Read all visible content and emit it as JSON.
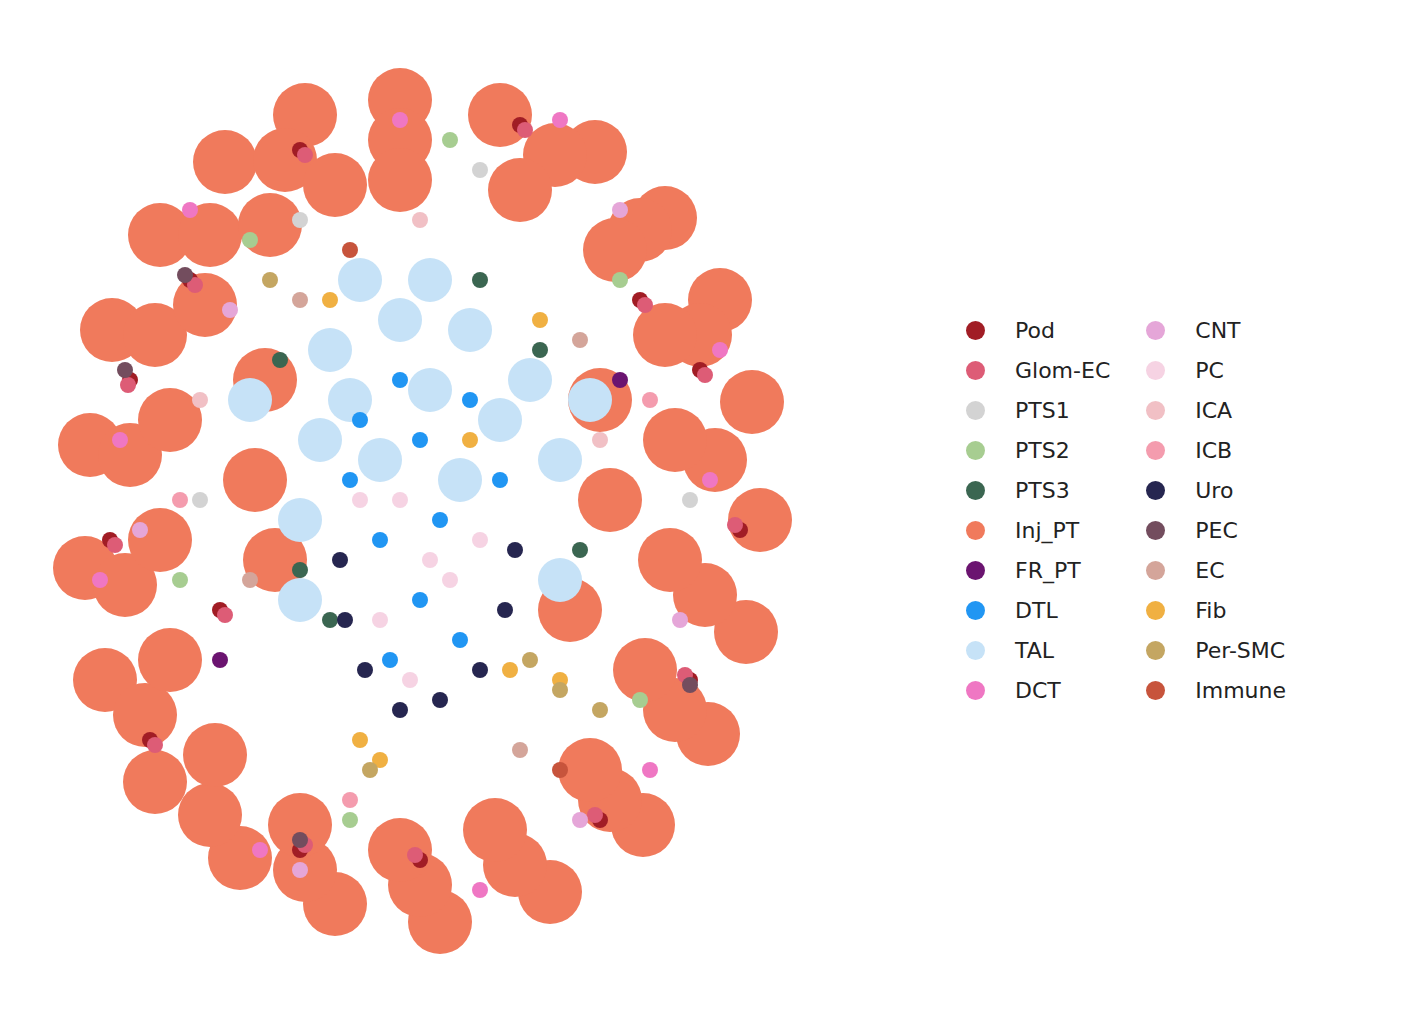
{
  "chart_data": {
    "type": "scatter",
    "marker": "circle",
    "grid": false,
    "tick_labels": false,
    "legend": "right",
    "xlim": [
      40,
      810
    ],
    "ylim": [
      30,
      950
    ],
    "series": [
      {
        "name": "Pod",
        "color": "#a11d25",
        "values": [
          [
            130,
            620
          ],
          [
            190,
            720
          ],
          [
            300,
            850
          ],
          [
            520,
            875
          ],
          [
            700,
            630
          ],
          [
            740,
            470
          ],
          [
            690,
            320
          ],
          [
            600,
            180
          ],
          [
            300,
            150
          ],
          [
            150,
            260
          ],
          [
            110,
            460
          ],
          [
            640,
            700
          ],
          [
            220,
            390
          ],
          [
            420,
            140
          ]
        ]
      },
      {
        "name": "Glom-EC",
        "color": "#dd5c76",
        "values": [
          [
            128,
            615
          ],
          [
            195,
            715
          ],
          [
            305,
            845
          ],
          [
            525,
            870
          ],
          [
            705,
            625
          ],
          [
            735,
            475
          ],
          [
            685,
            325
          ],
          [
            595,
            185
          ],
          [
            305,
            155
          ],
          [
            155,
            255
          ],
          [
            115,
            455
          ],
          [
            645,
            695
          ],
          [
            225,
            385
          ],
          [
            415,
            145
          ]
        ]
      },
      {
        "name": "PTS1",
        "color": "#d3d3d3",
        "values": [
          [
            480,
            830
          ],
          [
            300,
            780
          ],
          [
            200,
            500
          ],
          [
            690,
            500
          ]
        ]
      },
      {
        "name": "PTS2",
        "color": "#a7cd91",
        "values": [
          [
            250,
            760
          ],
          [
            620,
            720
          ],
          [
            180,
            420
          ],
          [
            640,
            300
          ],
          [
            450,
            860
          ],
          [
            350,
            180
          ]
        ]
      },
      {
        "name": "PTS3",
        "color": "#3b6651",
        "values": [
          [
            280,
            640
          ],
          [
            540,
            650
          ],
          [
            300,
            430
          ],
          [
            580,
            450
          ],
          [
            480,
            720
          ],
          [
            330,
            380
          ]
        ]
      },
      {
        "name": "Inj_PT",
        "color": "#f07a5c",
        "values": [
          [
            400,
            900
          ],
          [
            500,
            885
          ],
          [
            595,
            848
          ],
          [
            665,
            782
          ],
          [
            720,
            700
          ],
          [
            752,
            598
          ],
          [
            760,
            480
          ],
          [
            746,
            368
          ],
          [
            708,
            266
          ],
          [
            643,
            175
          ],
          [
            550,
            108
          ],
          [
            440,
            78
          ],
          [
            335,
            96
          ],
          [
            240,
            142
          ],
          [
            155,
            218
          ],
          [
            105,
            320
          ],
          [
            85,
            432
          ],
          [
            90,
            555
          ],
          [
            112,
            670
          ],
          [
            160,
            765
          ],
          [
            225,
            838
          ],
          [
            305,
            885
          ],
          [
            400,
            860
          ],
          [
            555,
            845
          ],
          [
            640,
            770
          ],
          [
            700,
            665
          ],
          [
            715,
            540
          ],
          [
            705,
            405
          ],
          [
            675,
            290
          ],
          [
            610,
            200
          ],
          [
            515,
            135
          ],
          [
            420,
            115
          ],
          [
            305,
            130
          ],
          [
            210,
            185
          ],
          [
            145,
            285
          ],
          [
            125,
            415
          ],
          [
            130,
            545
          ],
          [
            155,
            665
          ],
          [
            210,
            765
          ],
          [
            285,
            840
          ],
          [
            400,
            820
          ],
          [
            520,
            810
          ],
          [
            615,
            750
          ],
          [
            665,
            665
          ],
          [
            675,
            560
          ],
          [
            670,
            440
          ],
          [
            645,
            330
          ],
          [
            590,
            230
          ],
          [
            495,
            170
          ],
          [
            400,
            150
          ],
          [
            300,
            175
          ],
          [
            215,
            245
          ],
          [
            170,
            340
          ],
          [
            160,
            460
          ],
          [
            170,
            580
          ],
          [
            205,
            695
          ],
          [
            270,
            775
          ],
          [
            335,
            815
          ],
          [
            265,
            620
          ],
          [
            255,
            520
          ],
          [
            275,
            440
          ],
          [
            600,
            600
          ],
          [
            610,
            500
          ],
          [
            570,
            390
          ]
        ]
      },
      {
        "name": "FR_PT",
        "color": "#6b1470",
        "values": [
          [
            620,
            620
          ],
          [
            220,
            340
          ]
        ]
      },
      {
        "name": "DTL",
        "color": "#2196f3",
        "values": [
          [
            360,
            580
          ],
          [
            420,
            560
          ],
          [
            470,
            600
          ],
          [
            400,
            620
          ],
          [
            440,
            480
          ],
          [
            380,
            460
          ],
          [
            420,
            400
          ],
          [
            460,
            360
          ],
          [
            390,
            340
          ],
          [
            350,
            520
          ],
          [
            500,
            520
          ]
        ]
      },
      {
        "name": "TAL",
        "color": "#c6e2f7",
        "values": [
          [
            330,
            650
          ],
          [
            400,
            680
          ],
          [
            470,
            670
          ],
          [
            530,
            620
          ],
          [
            560,
            540
          ],
          [
            320,
            560
          ],
          [
            300,
            480
          ],
          [
            350,
            600
          ],
          [
            430,
            610
          ],
          [
            500,
            580
          ],
          [
            380,
            540
          ],
          [
            460,
            520
          ],
          [
            300,
            400
          ],
          [
            560,
            420
          ],
          [
            250,
            600
          ],
          [
            590,
            600
          ],
          [
            430,
            720
          ],
          [
            360,
            720
          ]
        ]
      },
      {
        "name": "DCT",
        "color": "#ef77c3",
        "values": [
          [
            120,
            560
          ],
          [
            190,
            790
          ],
          [
            560,
            880
          ],
          [
            710,
            520
          ],
          [
            650,
            230
          ],
          [
            260,
            150
          ],
          [
            480,
            110
          ],
          [
            100,
            420
          ],
          [
            720,
            650
          ],
          [
            400,
            880
          ]
        ]
      },
      {
        "name": "CNT",
        "color": "#e5a6d8",
        "values": [
          [
            140,
            470
          ],
          [
            680,
            380
          ],
          [
            580,
            180
          ],
          [
            300,
            130
          ],
          [
            230,
            690
          ],
          [
            620,
            790
          ]
        ]
      },
      {
        "name": "PC",
        "color": "#f6d3e3",
        "values": [
          [
            400,
            500
          ],
          [
            430,
            440
          ],
          [
            380,
            380
          ],
          [
            450,
            420
          ],
          [
            410,
            320
          ],
          [
            360,
            500
          ],
          [
            480,
            460
          ]
        ]
      },
      {
        "name": "ICA",
        "color": "#f1c0c5",
        "values": [
          [
            200,
            600
          ],
          [
            600,
            560
          ],
          [
            420,
            780
          ]
        ]
      },
      {
        "name": "ICB",
        "color": "#f49cae",
        "values": [
          [
            180,
            500
          ],
          [
            650,
            600
          ],
          [
            350,
            200
          ]
        ]
      },
      {
        "name": "Uro",
        "color": "#262650",
        "values": [
          [
            340,
            440
          ],
          [
            345,
            380
          ],
          [
            365,
            330
          ],
          [
            400,
            290
          ],
          [
            440,
            300
          ],
          [
            480,
            330
          ],
          [
            505,
            390
          ],
          [
            515,
            450
          ]
        ]
      },
      {
        "name": "PEC",
        "color": "#734d5e",
        "values": [
          [
            125,
            630
          ],
          [
            185,
            725
          ],
          [
            690,
            315
          ],
          [
            300,
            160
          ]
        ]
      },
      {
        "name": "EC",
        "color": "#d4a59a",
        "values": [
          [
            300,
            700
          ],
          [
            580,
            660
          ],
          [
            250,
            420
          ],
          [
            520,
            250
          ]
        ]
      },
      {
        "name": "Fib",
        "color": "#f0b042",
        "values": [
          [
            330,
            700
          ],
          [
            540,
            680
          ],
          [
            470,
            560
          ],
          [
            510,
            330
          ],
          [
            560,
            320
          ],
          [
            360,
            260
          ],
          [
            380,
            240
          ]
        ]
      },
      {
        "name": "Per-SMC",
        "color": "#c4a662",
        "values": [
          [
            270,
            720
          ],
          [
            560,
            310
          ],
          [
            530,
            340
          ],
          [
            370,
            230
          ],
          [
            600,
            290
          ]
        ]
      },
      {
        "name": "Immune",
        "color": "#c7543c",
        "values": [
          [
            350,
            750
          ],
          [
            560,
            230
          ]
        ]
      }
    ]
  }
}
